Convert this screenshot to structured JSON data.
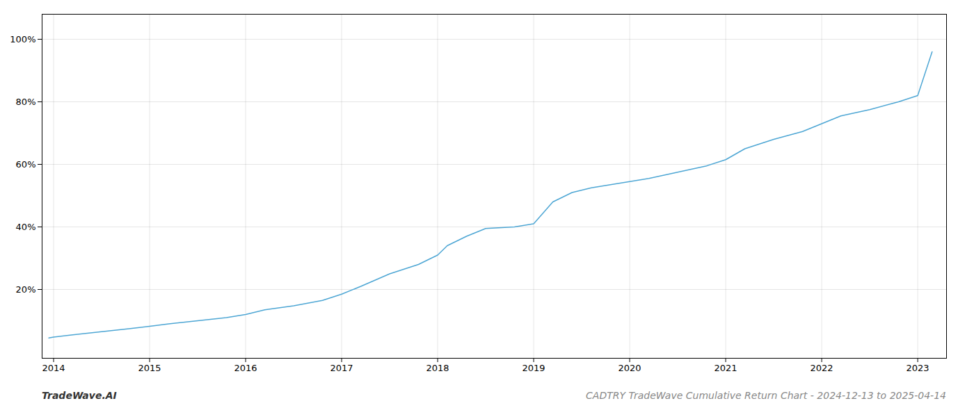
{
  "chart_data": {
    "type": "line",
    "title": "CADTRY TradeWave Cumulative Return Chart - 2024-12-13 to 2025-04-14",
    "annotations": [
      "TradeWave.AI"
    ],
    "color": "#4da6d4",
    "grid": true,
    "x": [
      2013.95,
      2014.0,
      2014.2,
      2014.5,
      2014.8,
      2015.0,
      2015.2,
      2015.5,
      2015.8,
      2016.0,
      2016.2,
      2016.5,
      2016.8,
      2017.0,
      2017.2,
      2017.5,
      2017.8,
      2018.0,
      2018.1,
      2018.3,
      2018.5,
      2018.8,
      2019.0,
      2019.2,
      2019.4,
      2019.6,
      2019.8,
      2020.0,
      2020.2,
      2020.5,
      2020.8,
      2021.0,
      2021.2,
      2021.5,
      2021.8,
      2022.0,
      2022.2,
      2022.5,
      2022.8,
      2023.0,
      2023.15
    ],
    "values": [
      0.045,
      0.048,
      0.055,
      0.065,
      0.075,
      0.082,
      0.09,
      0.1,
      0.11,
      0.12,
      0.135,
      0.148,
      0.165,
      0.185,
      0.21,
      0.25,
      0.28,
      0.31,
      0.34,
      0.37,
      0.395,
      0.4,
      0.41,
      0.48,
      0.51,
      0.525,
      0.535,
      0.545,
      0.555,
      0.575,
      0.595,
      0.615,
      0.65,
      0.68,
      0.705,
      0.73,
      0.755,
      0.775,
      0.8,
      0.82,
      0.96
    ],
    "xlim": [
      2013.88,
      2023.3
    ],
    "ylim": [
      -0.02,
      1.08
    ],
    "xticks": [
      2014,
      2015,
      2016,
      2017,
      2018,
      2019,
      2020,
      2021,
      2022,
      2023
    ],
    "yticks": [
      {
        "value": 0.2,
        "label": "20%"
      },
      {
        "value": 0.4,
        "label": "40%"
      },
      {
        "value": 0.6,
        "label": "60%"
      },
      {
        "value": 0.8,
        "label": "80%"
      },
      {
        "value": 1.0,
        "label": "100%"
      }
    ]
  }
}
